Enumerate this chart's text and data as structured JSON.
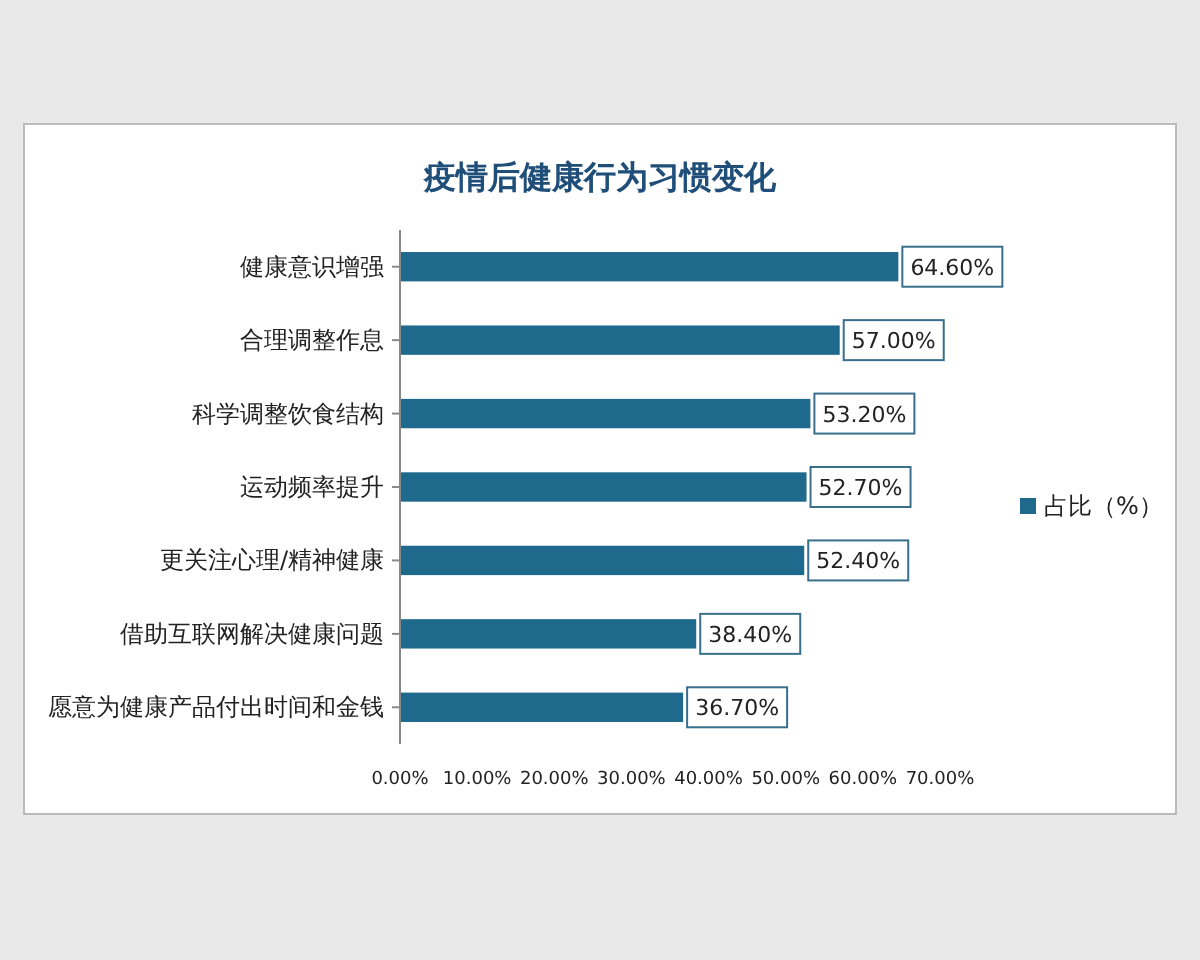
{
  "chart_data": {
    "type": "bar",
    "orientation": "horizontal",
    "title": "疫情后健康行为习惯变化",
    "categories": [
      "健康意识增强",
      "合理调整作息",
      "科学调整饮食结构",
      "运动频率提升",
      "更关注心理/精神健康",
      "借助互联网解决健康问题",
      "愿意为健康产品付出时间和金钱"
    ],
    "series": [
      {
        "name": "占比（%）",
        "color": "#1f6a8c",
        "values": [
          64.6,
          57.0,
          53.2,
          52.7,
          52.4,
          38.4,
          36.7
        ],
        "value_labels": [
          "64.60%",
          "57.00%",
          "53.20%",
          "52.70%",
          "52.40%",
          "38.40%",
          "36.70%"
        ]
      }
    ],
    "xlim": [
      0,
      70
    ],
    "xticks": [
      {
        "value": 0,
        "label": "0.00%"
      },
      {
        "value": 10,
        "label": "10.00%"
      },
      {
        "value": 20,
        "label": "20.00%"
      },
      {
        "value": 30,
        "label": "30.00%"
      },
      {
        "value": 40,
        "label": "40.00%"
      },
      {
        "value": 50,
        "label": "50.00%"
      },
      {
        "value": 60,
        "label": "60.00%"
      },
      {
        "value": 70,
        "label": "70.00%"
      }
    ],
    "legend": "right",
    "grid": false
  }
}
